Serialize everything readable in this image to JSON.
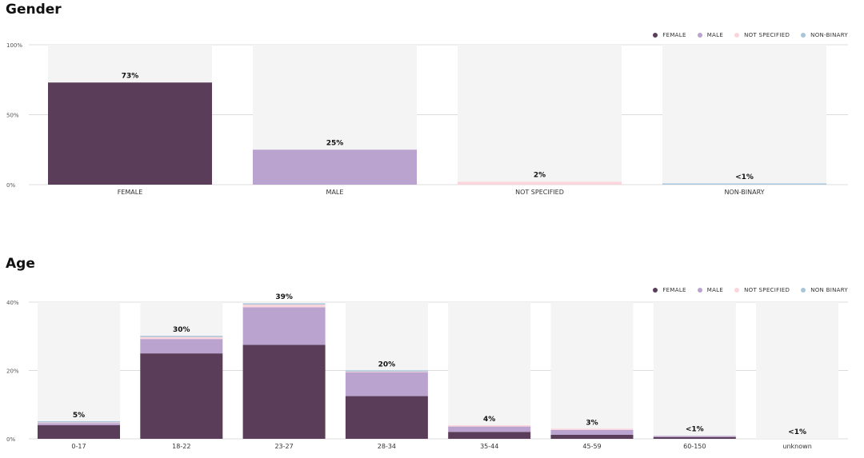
{
  "colors": {
    "female": "#5a3d58",
    "male": "#bba3cf",
    "not_specified": "#fbd5dc",
    "non_binary": "#a9c6da",
    "track": "#f4f4f4",
    "gridline": "#dcdcdc"
  },
  "legend": [
    "FEMALE",
    "MALE",
    "NOT SPECIFIED",
    "NON-BINARY"
  ],
  "legend_age": [
    "FEMALE",
    "MALE",
    "NOT SPECIFIED",
    "NON BINARY"
  ],
  "chart_data": [
    {
      "id": "gender",
      "type": "bar",
      "title": "Gender",
      "ylim": [
        0,
        100
      ],
      "yticks": [
        "0%",
        "50%",
        "100%"
      ],
      "ytick_values": [
        0,
        50,
        100
      ],
      "categories": [
        "FEMALE",
        "MALE",
        "NOT SPECIFIED",
        "NON-BINARY"
      ],
      "series": [
        {
          "name": "FEMALE",
          "values": [
            73,
            0,
            0,
            0
          ]
        },
        {
          "name": "MALE",
          "values": [
            0,
            25,
            0,
            0
          ]
        },
        {
          "name": "NOT SPECIFIED",
          "values": [
            0,
            0,
            2,
            0
          ]
        },
        {
          "name": "NON-BINARY",
          "values": [
            0,
            0,
            0,
            0.5
          ]
        }
      ],
      "labels": [
        "73%",
        "25%",
        "2%",
        "<1%"
      ],
      "grid": true,
      "legend_position": "top-right"
    },
    {
      "id": "age",
      "type": "bar",
      "stacked": true,
      "title": "Age",
      "ylim": [
        0,
        40
      ],
      "yticks": [
        "0%",
        "20%",
        "40%"
      ],
      "ytick_values": [
        0,
        20,
        40
      ],
      "categories": [
        "0-17",
        "18-22",
        "23-27",
        "28-34",
        "35-44",
        "45-59",
        "60-150",
        "unknown"
      ],
      "series": [
        {
          "name": "FEMALE",
          "values": [
            4,
            25,
            27.5,
            12.5,
            2,
            1.2,
            0.5,
            0
          ]
        },
        {
          "name": "MALE",
          "values": [
            0.6,
            4.2,
            11,
            7,
            1.6,
            1.4,
            0.3,
            0
          ]
        },
        {
          "name": "NOT SPECIFIED",
          "values": [
            0.2,
            0.6,
            0.8,
            0.2,
            0.1,
            0.1,
            0,
            0
          ]
        },
        {
          "name": "NON BINARY",
          "values": [
            0.1,
            0.2,
            0.2,
            0.1,
            0,
            0,
            0,
            0
          ]
        }
      ],
      "labels": [
        "5%",
        "30%",
        "39%",
        "20%",
        "4%",
        "3%",
        "<1%",
        "<1%"
      ],
      "grid": true,
      "legend_position": "top-right"
    }
  ]
}
